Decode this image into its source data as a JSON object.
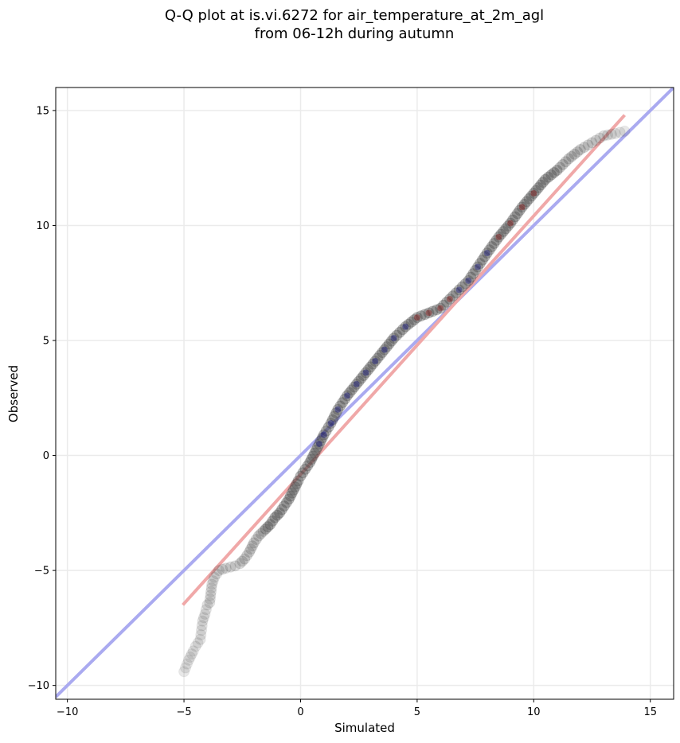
{
  "chart_data": {
    "type": "scatter",
    "title": "Q-Q plot at is.vi.6272 for air_temperature_at_2m_agl",
    "subtitle": "from 06-12h during autumn",
    "xlabel": "Simulated",
    "ylabel": "Observed",
    "xlim": [
      -10.5,
      16
    ],
    "ylim": [
      -10.6,
      16
    ],
    "xticks": [
      -10,
      -5,
      0,
      5,
      10,
      15
    ],
    "yticks": [
      -10,
      -5,
      0,
      5,
      10,
      15
    ],
    "xtick_labels": [
      "−10",
      "−5",
      "0",
      "5",
      "10",
      "15"
    ],
    "ytick_labels": [
      "−10",
      "−5",
      "0",
      "5",
      "10",
      "15"
    ],
    "grid": true,
    "reference_lines": [
      {
        "kind": "identity",
        "color": "#aaaaf0",
        "x": [
          -10.5,
          16
        ],
        "y": [
          -10.5,
          16
        ]
      },
      {
        "kind": "fit",
        "color": "#f0a8a8",
        "x": [
          -5.05,
          13.9
        ],
        "y": [
          -6.5,
          14.8
        ]
      }
    ],
    "quantile_points": {
      "x": [
        -5.0,
        -4.8,
        -4.6,
        -4.5,
        -4.3,
        -4.25,
        -4.2,
        -4.1,
        -4.0,
        -3.9,
        -3.8,
        -3.7,
        -3.5,
        -3.2,
        -2.8,
        -2.6,
        -2.4,
        -2.2,
        -2.0,
        -1.8,
        -1.6,
        -1.3,
        -1.1,
        -0.9,
        -0.7,
        -0.5,
        -0.3,
        -0.1,
        0.0,
        0.2,
        0.4,
        0.6,
        0.8,
        1.0,
        1.3,
        1.6,
        2.0,
        2.4,
        2.8,
        3.2,
        3.6,
        4.0,
        4.5,
        5.0,
        5.5,
        6.0,
        6.4,
        6.8,
        7.2,
        7.6,
        8.0,
        8.5,
        9.0,
        9.5,
        10.0,
        10.5,
        11.0,
        11.5,
        12.0,
        12.5,
        13.0,
        13.5,
        13.9
      ],
      "y": [
        -9.4,
        -8.9,
        -8.5,
        -8.3,
        -8.0,
        -7.6,
        -7.2,
        -6.9,
        -6.5,
        -6.4,
        -5.6,
        -5.3,
        -5.0,
        -4.9,
        -4.8,
        -4.7,
        -4.5,
        -4.2,
        -3.8,
        -3.5,
        -3.3,
        -3.0,
        -2.7,
        -2.5,
        -2.2,
        -1.9,
        -1.5,
        -1.1,
        -0.9,
        -0.6,
        -0.3,
        0.1,
        0.5,
        0.9,
        1.4,
        2.0,
        2.6,
        3.1,
        3.6,
        4.1,
        4.6,
        5.1,
        5.6,
        6.0,
        6.2,
        6.4,
        6.8,
        7.2,
        7.6,
        8.2,
        8.8,
        9.5,
        10.1,
        10.8,
        11.4,
        12.0,
        12.4,
        12.9,
        13.3,
        13.6,
        13.9,
        14.0,
        14.1
      ]
    },
    "point_color": "#444444",
    "highlight_colors": [
      "#000080",
      "#8b0000"
    ]
  }
}
